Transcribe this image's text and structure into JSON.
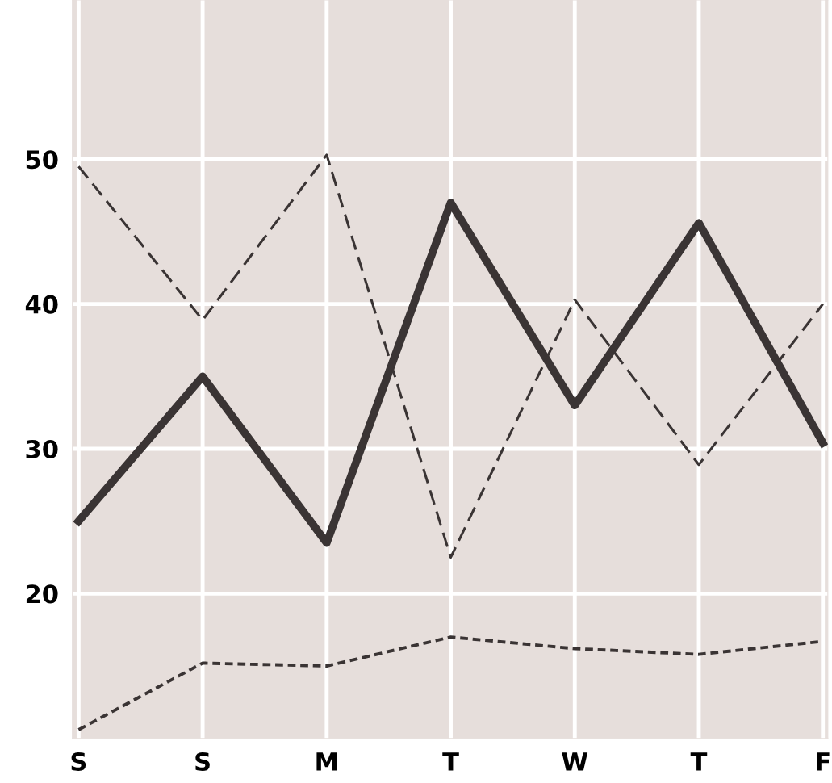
{
  "chart_data": {
    "type": "line",
    "categories": [
      "S",
      "S",
      "M",
      "T",
      "W",
      "T",
      "F"
    ],
    "series": [
      {
        "color": "#3a3434",
        "line_style": "solid",
        "values": [
          25,
          35,
          23.5,
          47,
          33,
          45.6,
          30.4
        ]
      },
      {
        "color": "#3a3434",
        "line_style": "dashed",
        "values": [
          49.5,
          38.9,
          50.3,
          22.5,
          40.3,
          28.9,
          40
        ]
      },
      {
        "color": "#3a3434",
        "line_style": "dotted",
        "values": [
          10.6,
          15.2,
          15,
          17,
          16.2,
          15.8,
          16.7
        ]
      }
    ],
    "ylim": [
      10,
      61
    ],
    "yticks": [
      20,
      30,
      40,
      50
    ],
    "grid": true,
    "marker": "none"
  }
}
